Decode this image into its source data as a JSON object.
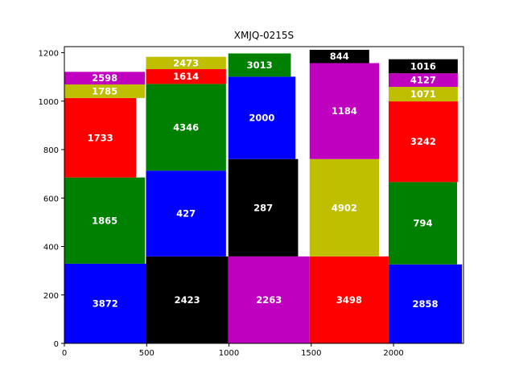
{
  "chart_data": {
    "type": "bar",
    "subtype": "variable-width stacked bar (marimekko-style treemap)",
    "title": "XMJQ-0215S",
    "xlabel": "",
    "ylabel": "",
    "xlim": [
      0,
      2425
    ],
    "ylim": [
      0,
      1225
    ],
    "xticks": [
      0,
      500,
      1000,
      1500,
      2000
    ],
    "yticks": [
      0,
      200,
      400,
      600,
      800,
      1000,
      1200
    ],
    "grid": false,
    "legend": false,
    "colors": {
      "blue": "#0000ff",
      "black": "#000000",
      "magenta": "#bf00bf",
      "red": "#ff0000",
      "green": "#008000",
      "olive": "#bfbf00"
    },
    "columns": [
      {
        "x_start": 0,
        "segments": [
          {
            "label": "3872",
            "width": 496,
            "height": 329,
            "color": "blue"
          },
          {
            "label": "1865",
            "width": 490,
            "height": 356,
            "color": "green"
          },
          {
            "label": "1733",
            "width": 436,
            "height": 328,
            "color": "red"
          },
          {
            "label": "1785",
            "width": 490,
            "height": 56,
            "color": "olive"
          },
          {
            "label": "2598",
            "width": 490,
            "height": 52,
            "color": "magenta"
          }
        ]
      },
      {
        "x_start": 496,
        "segments": [
          {
            "label": "2423",
            "width": 500,
            "height": 359,
            "color": "black"
          },
          {
            "label": "427",
            "width": 486,
            "height": 354,
            "color": "blue"
          },
          {
            "label": "4346",
            "width": 486,
            "height": 358,
            "color": "green"
          },
          {
            "label": "1614",
            "width": 486,
            "height": 61,
            "color": "red"
          },
          {
            "label": "2473",
            "width": 486,
            "height": 51,
            "color": "olive"
          }
        ]
      },
      {
        "x_start": 996,
        "segments": [
          {
            "label": "2263",
            "width": 494,
            "height": 359,
            "color": "magenta"
          },
          {
            "label": "287",
            "width": 424,
            "height": 402,
            "color": "black"
          },
          {
            "label": "2000",
            "width": 408,
            "height": 340,
            "color": "blue"
          },
          {
            "label": "3013",
            "width": 380,
            "height": 96,
            "color": "green"
          }
        ]
      },
      {
        "x_start": 1490,
        "segments": [
          {
            "label": "3498",
            "width": 480,
            "height": 359,
            "color": "red"
          },
          {
            "label": "4902",
            "width": 422,
            "height": 402,
            "color": "olive"
          },
          {
            "label": "1184",
            "width": 422,
            "height": 396,
            "color": "magenta"
          },
          {
            "label": "844",
            "width": 362,
            "height": 55,
            "color": "black"
          }
        ]
      },
      {
        "x_start": 1970,
        "segments": [
          {
            "label": "2858",
            "width": 446,
            "height": 326,
            "color": "blue"
          },
          {
            "label": "794",
            "width": 416,
            "height": 340,
            "color": "green"
          },
          {
            "label": "3242",
            "width": 420,
            "height": 333,
            "color": "red"
          },
          {
            "label": "1071",
            "width": 420,
            "height": 60,
            "color": "olive"
          },
          {
            "label": "4127",
            "width": 420,
            "height": 56,
            "color": "magenta"
          },
          {
            "label": "1016",
            "width": 420,
            "height": 58,
            "color": "black"
          }
        ]
      }
    ]
  }
}
